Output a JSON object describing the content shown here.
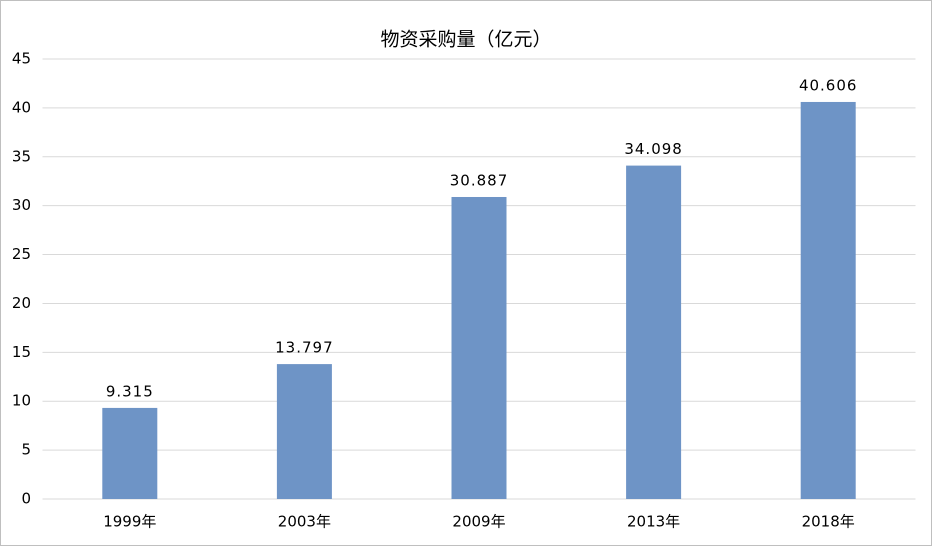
{
  "chart_data": {
    "type": "bar",
    "title": "物资采购量（亿元）",
    "categories": [
      "1999年",
      "2003年",
      "2009年",
      "2013年",
      "2018年"
    ],
    "values": [
      9.315,
      13.797,
      30.887,
      34.098,
      40.606
    ],
    "color": "#6e94c6",
    "ylim": [
      0,
      45
    ],
    "yticks": [
      0,
      5,
      10,
      15,
      20,
      25,
      30,
      35,
      40,
      45
    ],
    "grid": true
  }
}
